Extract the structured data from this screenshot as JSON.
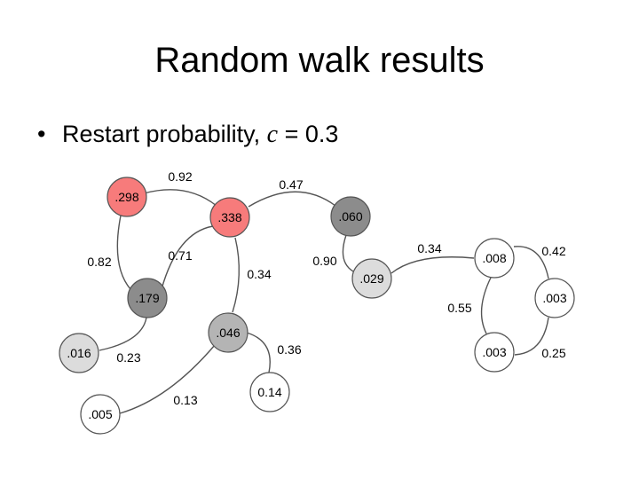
{
  "title": "Random walk results",
  "bullet": {
    "marker": "•",
    "text": "Restart probability,",
    "variable": "c",
    "equals": "= 0.3"
  },
  "colors": {
    "red": "#f77b7b",
    "dark": "#8c8c8c",
    "mid": "#b4b4b4",
    "light": "#dcdcdc",
    "white": "#ffffff"
  },
  "nodes": [
    {
      "id": "n298",
      "label": ".298",
      "fill": "red"
    },
    {
      "id": "n338",
      "label": ".338",
      "fill": "red"
    },
    {
      "id": "n060",
      "label": ".060",
      "fill": "dark"
    },
    {
      "id": "n179",
      "label": ".179",
      "fill": "dark"
    },
    {
      "id": "n029",
      "label": ".029",
      "fill": "light"
    },
    {
      "id": "n016",
      "label": ".016",
      "fill": "light"
    },
    {
      "id": "n046",
      "label": ".046",
      "fill": "mid"
    },
    {
      "id": "n014",
      "label": "0.14",
      "fill": "white"
    },
    {
      "id": "n005",
      "label": ".005",
      "fill": "white"
    },
    {
      "id": "n008",
      "label": ".008",
      "fill": "white"
    },
    {
      "id": "n003a",
      "label": ".003",
      "fill": "white"
    },
    {
      "id": "n003b",
      "label": ".003",
      "fill": "white"
    }
  ],
  "edges": [
    {
      "id": "e1",
      "label": "0.92"
    },
    {
      "id": "e2",
      "label": "0.47"
    },
    {
      "id": "e3",
      "label": "0.82"
    },
    {
      "id": "e4",
      "label": "0.71"
    },
    {
      "id": "e5",
      "label": "0.34"
    },
    {
      "id": "e6",
      "label": "0.90"
    },
    {
      "id": "e7",
      "label": "0.34"
    },
    {
      "id": "e8",
      "label": "0.42"
    },
    {
      "id": "e9",
      "label": "0.55"
    },
    {
      "id": "e10",
      "label": "0.25"
    },
    {
      "id": "e11",
      "label": "0.23"
    },
    {
      "id": "e12",
      "label": "0.36"
    },
    {
      "id": "e13",
      "label": "0.13"
    }
  ]
}
